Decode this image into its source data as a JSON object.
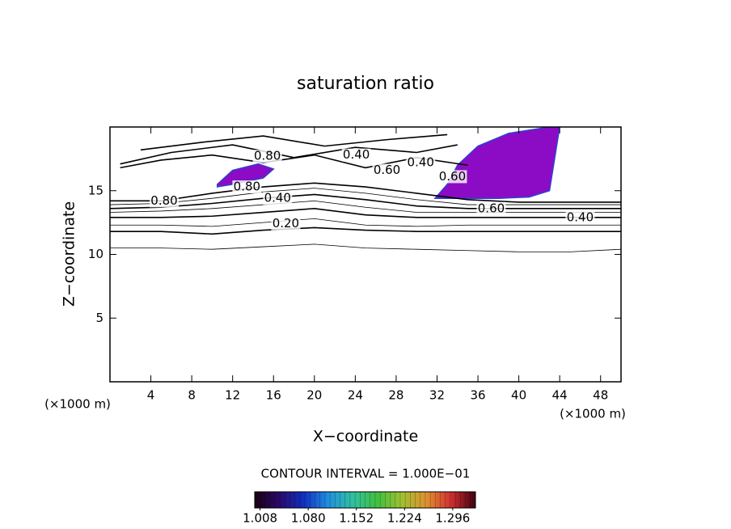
{
  "chart_data": {
    "type": "contour",
    "title": "saturation ratio",
    "xlabel": "X−coordinate",
    "ylabel": "Z−coordinate",
    "x_unit": "(×1000 m)",
    "y_unit": "(×1000 m)",
    "xlim": [
      0,
      50
    ],
    "ylim": [
      0,
      20
    ],
    "xticks": [
      4,
      8,
      12,
      16,
      20,
      24,
      28,
      32,
      36,
      40,
      44,
      48
    ],
    "yticks": [
      5,
      10,
      15
    ],
    "contours": [
      {
        "level": 0.1,
        "x": [
          0,
          5,
          10,
          15,
          20,
          25,
          30,
          35,
          40,
          45,
          50
        ],
        "z": [
          10.5,
          10.5,
          10.4,
          10.6,
          10.8,
          10.5,
          10.4,
          10.3,
          10.2,
          10.2,
          10.4
        ]
      },
      {
        "level": 0.2,
        "x": [
          0,
          5,
          10,
          15,
          20,
          25,
          30,
          35,
          40,
          45,
          50
        ],
        "z": [
          11.8,
          11.8,
          11.6,
          11.9,
          12.1,
          11.9,
          11.8,
          11.8,
          11.8,
          11.8,
          11.8
        ]
      },
      {
        "level": 0.3,
        "x": [
          0,
          5,
          10,
          15,
          20,
          25,
          30,
          35,
          40,
          45,
          50
        ],
        "z": [
          12.3,
          12.3,
          12.2,
          12.5,
          12.8,
          12.3,
          12.2,
          12.3,
          12.3,
          12.3,
          12.3
        ]
      },
      {
        "level": 0.4,
        "x": [
          0,
          5,
          10,
          15,
          20,
          25,
          30,
          35,
          40,
          45,
          50
        ],
        "z": [
          12.9,
          12.9,
          13.0,
          13.3,
          13.6,
          13.1,
          12.9,
          12.9,
          12.9,
          12.9,
          12.9
        ]
      },
      {
        "level": 0.5,
        "x": [
          0,
          5,
          10,
          15,
          20,
          25,
          30,
          35,
          40,
          45,
          50
        ],
        "z": [
          13.3,
          13.4,
          13.6,
          13.9,
          14.2,
          13.7,
          13.3,
          13.3,
          13.3,
          13.3,
          13.3
        ]
      },
      {
        "level": 0.6,
        "x": [
          0,
          5,
          10,
          15,
          20,
          25,
          30,
          35,
          40,
          45,
          50
        ],
        "z": [
          13.6,
          13.7,
          14.0,
          14.4,
          14.7,
          14.3,
          13.8,
          13.6,
          13.6,
          13.6,
          13.6
        ]
      },
      {
        "level": 0.7,
        "x": [
          0,
          5,
          10,
          15,
          20,
          25,
          30,
          35,
          40,
          45,
          50
        ],
        "z": [
          13.9,
          14.0,
          14.4,
          14.9,
          15.2,
          14.8,
          14.3,
          13.9,
          13.9,
          13.9,
          13.9
        ]
      },
      {
        "level": 0.8,
        "x": [
          0,
          5,
          10,
          15,
          20,
          25,
          30,
          35,
          40,
          45,
          50
        ],
        "z": [
          14.2,
          14.2,
          14.8,
          15.3,
          15.6,
          15.3,
          14.8,
          14.3,
          14.1,
          14.1,
          14.1
        ]
      },
      {
        "level": 0.6,
        "x": [
          1,
          5,
          10,
          15,
          20,
          25,
          30,
          35
        ],
        "z": [
          16.8,
          17.4,
          17.8,
          17.2,
          17.8,
          16.8,
          17.6,
          17.0
        ]
      },
      {
        "level": 0.4,
        "x": [
          1,
          6,
          12,
          18,
          24,
          30,
          34
        ],
        "z": [
          17.1,
          18.0,
          18.6,
          17.6,
          18.4,
          18.0,
          18.6
        ]
      },
      {
        "level": 0.2,
        "x": [
          3,
          9,
          15,
          21,
          27,
          33
        ],
        "z": [
          18.2,
          18.8,
          19.3,
          18.5,
          19.0,
          19.4
        ]
      }
    ],
    "filled": [
      {
        "value": 1.02,
        "color": "#8b0cc4",
        "x": [
          10.5,
          12,
          14.5,
          16,
          15,
          12,
          10.5
        ],
        "z": [
          15.5,
          16.6,
          17.1,
          16.7,
          16,
          15.5,
          15.3
        ]
      },
      {
        "value": 1.02,
        "color": "#8b0cc4",
        "x": [
          31.8,
          33,
          34,
          36,
          39,
          43,
          44,
          43.5,
          43,
          41,
          38,
          35,
          32.5
        ],
        "z": [
          14.4,
          15.5,
          17.0,
          18.5,
          19.5,
          20,
          20,
          17.5,
          15.0,
          14.5,
          14.4,
          14.4,
          14.4
        ]
      }
    ],
    "contour_labels": [
      {
        "x": 15.4,
        "z": 17.7,
        "value": 0.8,
        "label": "0.80"
      },
      {
        "x": 24.1,
        "z": 17.8,
        "value": 0.4,
        "label": "0.40"
      },
      {
        "x": 27.1,
        "z": 16.6,
        "value": 0.6,
        "label": "0.60"
      },
      {
        "x": 30.4,
        "z": 17.2,
        "value": 0.4,
        "label": "0.40"
      },
      {
        "x": 33.5,
        "z": 16.1,
        "value": 0.6,
        "label": "0.60"
      },
      {
        "x": 13.4,
        "z": 15.3,
        "value": 0.8,
        "label": "0.80"
      },
      {
        "x": 16.4,
        "z": 14.4,
        "value": 0.4,
        "label": "0.40"
      },
      {
        "x": 5.3,
        "z": 14.2,
        "value": 0.8,
        "label": "0.80"
      },
      {
        "x": 17.2,
        "z": 12.4,
        "value": 0.2,
        "label": "0.20"
      },
      {
        "x": 37.3,
        "z": 13.6,
        "value": 0.6,
        "label": "0.60"
      },
      {
        "x": 46.0,
        "z": 12.9,
        "value": 0.4,
        "label": "0.40"
      }
    ],
    "contour_interval_label": "CONTOUR INTERVAL = 1.000E−01",
    "colorbar": {
      "lim": [
        1.0,
        1.33
      ],
      "colors": [
        "#1a0010",
        "#2a0a6a",
        "#1030c0",
        "#2090e0",
        "#30c0a0",
        "#40c040",
        "#a0c030",
        "#e09030",
        "#d03030",
        "#400010"
      ],
      "ticks": [
        1.008,
        {
          "value": 1.08,
          "label": "1.080"
        },
        1.152,
        1.224,
        1.296
      ]
    }
  }
}
